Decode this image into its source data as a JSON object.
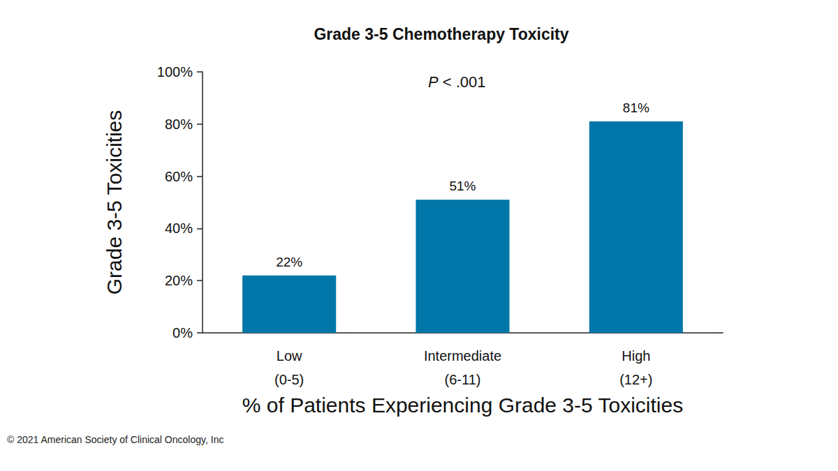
{
  "chart_data": {
    "type": "bar",
    "title": "Grade 3-5 Chemotherapy Toxicity",
    "y_label": "Grade 3-5 Toxicities",
    "x_label": "% of Patients Experiencing Grade 3-5 Toxicities",
    "annotations": [
      "P < .001"
    ],
    "caption": "© 2021 American Society of Clinical Oncology, Inc",
    "categories": [
      "Low\n(0-5)",
      "Intermediate\n(6-11)",
      "High\n(12+)"
    ],
    "values": [
      22,
      51,
      81
    ],
    "value_labels": [
      "22%",
      "51%",
      "81%"
    ],
    "color": "#0077a8",
    "ylim": [
      0,
      100
    ],
    "yticks": [
      {
        "value": 0,
        "label": "0%"
      },
      {
        "value": 20,
        "label": "20%"
      },
      {
        "value": 40,
        "label": "40%"
      },
      {
        "value": 60,
        "label": "60%"
      },
      {
        "value": 80,
        "label": "80%"
      },
      {
        "value": 100,
        "label": "100%"
      }
    ],
    "grid": false,
    "data_labels": true
  }
}
